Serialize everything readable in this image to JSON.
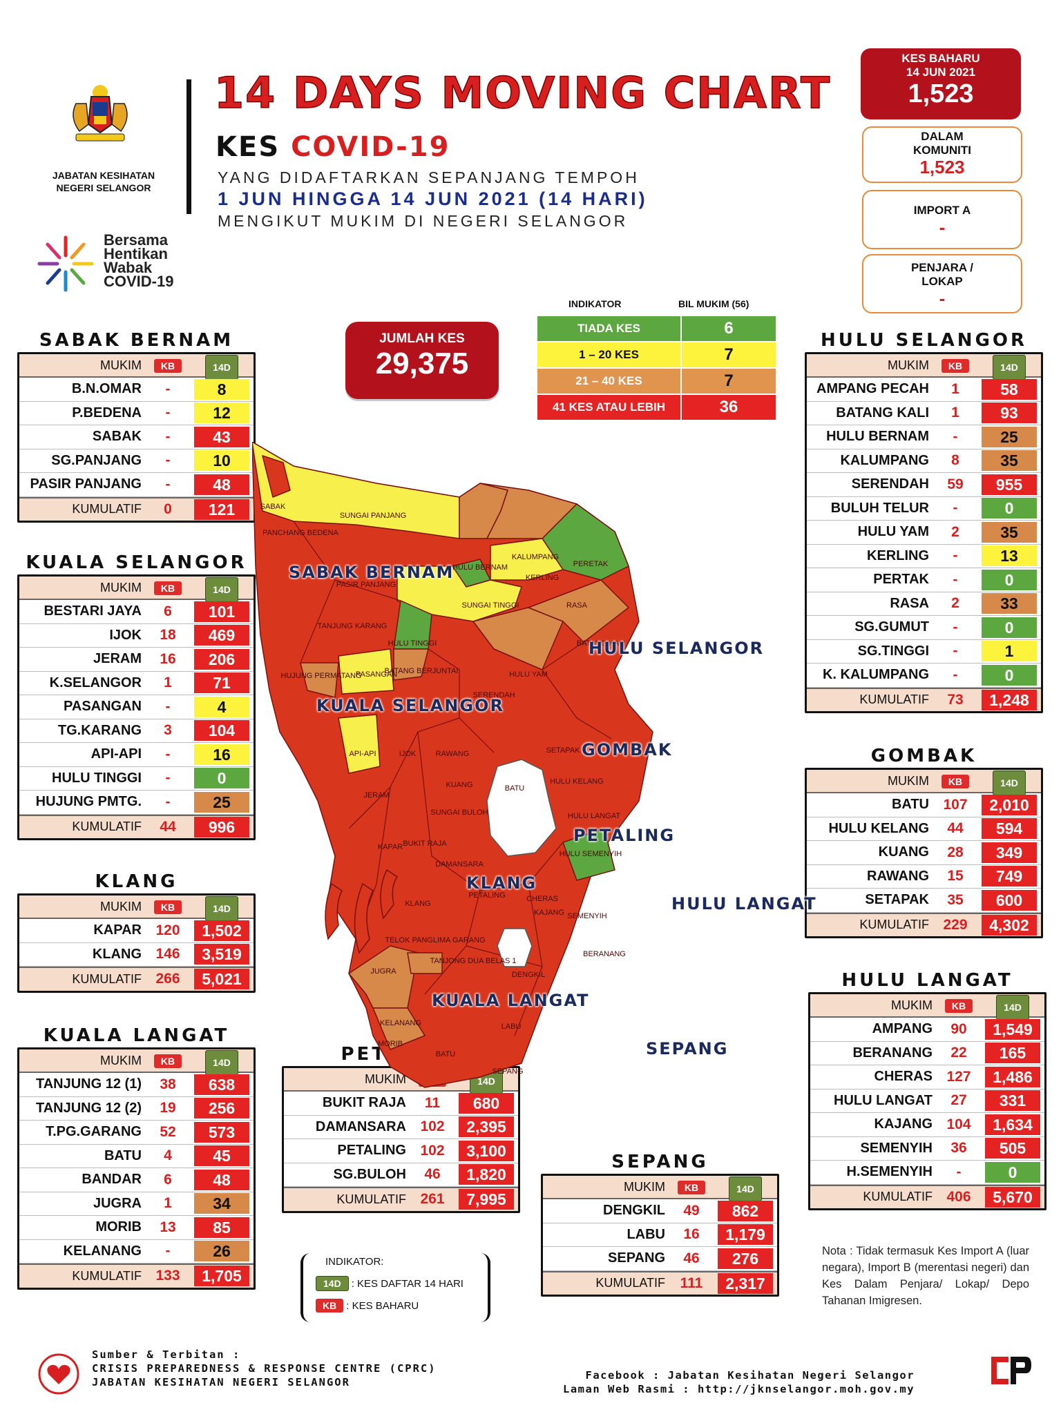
{
  "header": {
    "dept_name": "JABATAN KESIHATAN NEGERI SELANGOR",
    "dept_line1": "JABATAN KESIHATAN",
    "dept_line2": "NEGERI SELANGOR",
    "title": "14 DAYS MOVING CHART",
    "sub_kes": "KES",
    "sub_covid": "COVID-19",
    "sub_line2": "YANG DIDAFTARKAN SEPANJANG TEMPOH",
    "sub_line3": "1 JUN HINGGA 14 JUN 2021 (14 HARI)",
    "sub_line4": "MENGIKUT MUKIM DI NEGERI SELANGOR",
    "campaign_l1": "Bersama",
    "campaign_l2": "Hentikan",
    "campaign_l3": "Wabak",
    "campaign_l4": "COVID-19"
  },
  "kes_baharu": {
    "label": "KES BAHARU",
    "date": "14 JUN 2021",
    "value": "1,523",
    "komuniti_label1": "DALAM",
    "komuniti_label2": "KOMUNITI",
    "komuniti_value": "1,523",
    "import_label": "IMPORT A",
    "import_value": "-",
    "penjara_label1": "PENJARA /",
    "penjara_label2": "LOKAP",
    "penjara_value": "-"
  },
  "jumlah": {
    "label": "JUMLAH KES",
    "value": "29,375"
  },
  "indicator": {
    "head_left": "INDIKATOR",
    "head_right": "BIL MUKIM (56)",
    "rows": [
      {
        "label": "TIADA KES",
        "count": "6",
        "color": "#5ca73f",
        "count_color": "#5ca73f"
      },
      {
        "label": "1 – 20 KES",
        "count": "7",
        "color": "#fdf33c",
        "count_color": "#fdf33c"
      },
      {
        "label": "21 – 40 KES",
        "count": "7",
        "color": "#e0944e",
        "count_color": "#e0944e"
      },
      {
        "label": "41 KES ATAU LEBIH",
        "count": "36",
        "color": "#e52322",
        "count_color": "#e52322"
      }
    ]
  },
  "table_head": {
    "mukim": "MUKIM",
    "kb": "KB",
    "d14": "14D",
    "kumulatif": "KUMULATIF"
  },
  "districts": {
    "sabak_bernam": {
      "title": "SABAK BERNAM",
      "rows": [
        {
          "name": "B.N.OMAR",
          "kb": "-",
          "d14": "8",
          "c": "yellow"
        },
        {
          "name": "P.BEDENA",
          "kb": "-",
          "d14": "12",
          "c": "yellow"
        },
        {
          "name": "SABAK",
          "kb": "-",
          "d14": "43",
          "c": "red"
        },
        {
          "name": "SG.PANJANG",
          "kb": "-",
          "d14": "10",
          "c": "yellow"
        },
        {
          "name": "PASIR PANJANG",
          "kb": "-",
          "d14": "48",
          "c": "red"
        }
      ],
      "kum_kb": "0",
      "kum_14": "121"
    },
    "kuala_selangor": {
      "title": "KUALA SELANGOR",
      "rows": [
        {
          "name": "BESTARI JAYA",
          "kb": "6",
          "d14": "101",
          "c": "red"
        },
        {
          "name": "IJOK",
          "kb": "18",
          "d14": "469",
          "c": "red"
        },
        {
          "name": "JERAM",
          "kb": "16",
          "d14": "206",
          "c": "red"
        },
        {
          "name": "K.SELANGOR",
          "kb": "1",
          "d14": "71",
          "c": "red"
        },
        {
          "name": "PASANGAN",
          "kb": "-",
          "d14": "4",
          "c": "yellow"
        },
        {
          "name": "TG.KARANG",
          "kb": "3",
          "d14": "104",
          "c": "red"
        },
        {
          "name": "API-API",
          "kb": "-",
          "d14": "16",
          "c": "yellow"
        },
        {
          "name": "HULU TINGGI",
          "kb": "-",
          "d14": "0",
          "c": "green"
        },
        {
          "name": "HUJUNG PMTG.",
          "kb": "-",
          "d14": "25",
          "c": "orange"
        }
      ],
      "kum_kb": "44",
      "kum_14": "996"
    },
    "klang": {
      "title": "KLANG",
      "rows": [
        {
          "name": "KAPAR",
          "kb": "120",
          "d14": "1,502",
          "c": "red"
        },
        {
          "name": "KLANG",
          "kb": "146",
          "d14": "3,519",
          "c": "red"
        }
      ],
      "kum_kb": "266",
      "kum_14": "5,021"
    },
    "kuala_langat": {
      "title": "KUALA LANGAT",
      "rows": [
        {
          "name": "TANJUNG 12 (1)",
          "kb": "38",
          "d14": "638",
          "c": "red"
        },
        {
          "name": "TANJUNG 12 (2)",
          "kb": "19",
          "d14": "256",
          "c": "red"
        },
        {
          "name": "T.PG.GARANG",
          "kb": "52",
          "d14": "573",
          "c": "red"
        },
        {
          "name": "BATU",
          "kb": "4",
          "d14": "45",
          "c": "red"
        },
        {
          "name": "BANDAR",
          "kb": "6",
          "d14": "48",
          "c": "red"
        },
        {
          "name": "JUGRA",
          "kb": "1",
          "d14": "34",
          "c": "orange"
        },
        {
          "name": "MORIB",
          "kb": "13",
          "d14": "85",
          "c": "red"
        },
        {
          "name": "KELANANG",
          "kb": "-",
          "d14": "26",
          "c": "orange"
        }
      ],
      "kum_kb": "133",
      "kum_14": "1,705"
    },
    "petaling": {
      "title": "PETALING",
      "rows": [
        {
          "name": "BUKIT RAJA",
          "kb": "11",
          "d14": "680",
          "c": "red"
        },
        {
          "name": "DAMANSARA",
          "kb": "102",
          "d14": "2,395",
          "c": "red"
        },
        {
          "name": "PETALING",
          "kb": "102",
          "d14": "3,100",
          "c": "red"
        },
        {
          "name": "SG.BULOH",
          "kb": "46",
          "d14": "1,820",
          "c": "red"
        }
      ],
      "kum_kb": "261",
      "kum_14": "7,995"
    },
    "sepang": {
      "title": "SEPANG",
      "rows": [
        {
          "name": "DENGKIL",
          "kb": "49",
          "d14": "862",
          "c": "red"
        },
        {
          "name": "LABU",
          "kb": "16",
          "d14": "1,179",
          "c": "red"
        },
        {
          "name": "SEPANG",
          "kb": "46",
          "d14": "276",
          "c": "red"
        }
      ],
      "kum_kb": "111",
      "kum_14": "2,317"
    },
    "hulu_selangor": {
      "title": "HULU SELANGOR",
      "rows": [
        {
          "name": "AMPANG PECAH",
          "kb": "1",
          "d14": "58",
          "c": "red"
        },
        {
          "name": "BATANG KALI",
          "kb": "1",
          "d14": "93",
          "c": "red"
        },
        {
          "name": "HULU BERNAM",
          "kb": "-",
          "d14": "25",
          "c": "orange"
        },
        {
          "name": "KALUMPANG",
          "kb": "8",
          "d14": "35",
          "c": "orange"
        },
        {
          "name": "SERENDAH",
          "kb": "59",
          "d14": "955",
          "c": "red"
        },
        {
          "name": "BULUH TELUR",
          "kb": "-",
          "d14": "0",
          "c": "green"
        },
        {
          "name": "HULU YAM",
          "kb": "2",
          "d14": "35",
          "c": "orange"
        },
        {
          "name": "KERLING",
          "kb": "-",
          "d14": "13",
          "c": "yellow"
        },
        {
          "name": "PERTAK",
          "kb": "-",
          "d14": "0",
          "c": "green"
        },
        {
          "name": "RASA",
          "kb": "2",
          "d14": "33",
          "c": "orange"
        },
        {
          "name": "SG.GUMUT",
          "kb": "-",
          "d14": "0",
          "c": "green"
        },
        {
          "name": "SG.TINGGI",
          "kb": "-",
          "d14": "1",
          "c": "yellow"
        },
        {
          "name": "K. KALUMPANG",
          "kb": "-",
          "d14": "0",
          "c": "green"
        }
      ],
      "kum_kb": "73",
      "kum_14": "1,248"
    },
    "gombak": {
      "title": "GOMBAK",
      "rows": [
        {
          "name": "BATU",
          "kb": "107",
          "d14": "2,010",
          "c": "red"
        },
        {
          "name": "HULU KELANG",
          "kb": "44",
          "d14": "594",
          "c": "red"
        },
        {
          "name": "KUANG",
          "kb": "28",
          "d14": "349",
          "c": "red"
        },
        {
          "name": "RAWANG",
          "kb": "15",
          "d14": "749",
          "c": "red"
        },
        {
          "name": "SETAPAK",
          "kb": "35",
          "d14": "600",
          "c": "red"
        }
      ],
      "kum_kb": "229",
      "kum_14": "4,302"
    },
    "hulu_langat": {
      "title": "HULU LANGAT",
      "rows": [
        {
          "name": "AMPANG",
          "kb": "90",
          "d14": "1,549",
          "c": "red"
        },
        {
          "name": "BERANANG",
          "kb": "22",
          "d14": "165",
          "c": "red"
        },
        {
          "name": "CHERAS",
          "kb": "127",
          "d14": "1,486",
          "c": "red"
        },
        {
          "name": "HULU LANGAT",
          "kb": "27",
          "d14": "331",
          "c": "red"
        },
        {
          "name": "KAJANG",
          "kb": "104",
          "d14": "1,634",
          "c": "red"
        },
        {
          "name": "SEMENYIH",
          "kb": "36",
          "d14": "505",
          "c": "red"
        },
        {
          "name": "H.SEMENYIH",
          "kb": "-",
          "d14": "0",
          "c": "green"
        }
      ],
      "kum_kb": "406",
      "kum_14": "5,670"
    }
  },
  "map_labels": {
    "sabak_bernam": "SABAK BERNAM",
    "hulu_selangor": "HULU SELANGOR",
    "kuala_selangor": "KUALA SELANGOR",
    "gombak": "GOMBAK",
    "petaling": "PETALING",
    "klang": "KLANG",
    "hulu_langat": "HULU LANGAT",
    "kuala_langat": "KUALA LANGAT",
    "sepang": "SEPANG",
    "mukim": {
      "sabak": "SABAK",
      "panchang": "PANCHANG BEDENA",
      "sungai_panjang": "SUNGAI PANJANG",
      "pasir_panjang": "PASIR PANJANG",
      "hulu_bernam": "HULU BERNAM",
      "kalumpang": "KALUMPANG",
      "peretak": "PERETAK",
      "sungai_tinggi": "SUNGAI TINGGI",
      "kerling": "KERLING",
      "rasa": "RASA",
      "tanjung_karang": "TANJUNG KARANG",
      "hulu_tinggi": "HULU TINGGI",
      "batang_kali": "BATANG KALI",
      "hujung_permatang": "HUJUNG PERMATANG",
      "pasangan": "PASANGAN",
      "batang_berjuntai": "BATANG BERJUNTAI",
      "hulu_yam": "HULU YAM",
      "serendah": "SERENDAH",
      "rawang": "RAWANG",
      "setapak": "SETAPAK",
      "api_api": "API-API",
      "ijok": "IJOK",
      "kuang": "KUANG",
      "batu": "BATU",
      "hulu_kelang": "HULU KELANG",
      "jeram": "JERAM",
      "sungai_buloh": "SUNGAI BULOH",
      "hulu_langat_m": "HULU LANGAT",
      "kapar": "KAPAR",
      "bukit_raja": "BUKIT RAJA",
      "damansara": "DAMANSARA",
      "hulu_semenyih": "HULU SEMENYIH",
      "klang_m": "KLANG",
      "petaling_m": "PETALING",
      "cheras": "CHERAS",
      "kajang": "KAJANG",
      "semenyih": "SEMENYIH",
      "telok": "TELOK PANGLIMA GARANG",
      "tanjong": "TANJONG DUA BELAS 1",
      "jugra": "JUGRA",
      "beranang": "BERANANG",
      "dengkil": "DENGKIL",
      "kelanang": "KELANANG",
      "morib": "MORIB",
      "labu": "LABU",
      "batu_kl": "BATU",
      "sepang_m": "SEPANG"
    }
  },
  "legend": {
    "title": "INDIKATOR:",
    "d14_label": ": KES DAFTAR 14 HARI",
    "kb_label": ": KES BAHARU"
  },
  "nota": "Nota : Tidak termasuk Kes Import A (luar negara), Import B (merentasi negeri) dan Kes Dalam Penjara/ Lokap/ Depo Tahanan Imigresen.",
  "footer": {
    "src1": "Sumber & Terbitan :",
    "src2": "CRISIS PREPAREDNESS & RESPONSE CENTRE (CPRC)",
    "src3": "JABATAN KESIHATAN NEGERI SELANGOR",
    "fb1": "Facebook : Jabatan Kesihatan Negeri Selangor",
    "fb2": "Laman Web Rasmi : http://jknselangor.moh.gov.my"
  },
  "colors": {
    "red": "#e52322",
    "yellow": "#fdf33c",
    "orange": "#d7894a",
    "green": "#5ca73f",
    "dark_red": "#b3111b"
  }
}
